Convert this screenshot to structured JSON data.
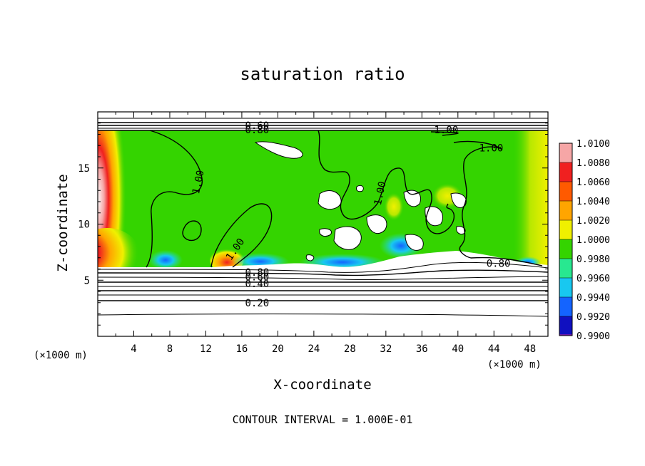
{
  "chart_data": {
    "type": "heatmap",
    "title": "saturation ratio",
    "xlabel": "X-coordinate",
    "ylabel": "Z-coordinate",
    "x_unit": "(×1000 m)",
    "z_unit": "(×1000 m)",
    "xlim": [
      0,
      50
    ],
    "ylim": [
      0,
      20
    ],
    "xticks": [
      4,
      8,
      12,
      16,
      20,
      24,
      28,
      32,
      36,
      40,
      44,
      48
    ],
    "yticks": [
      5,
      10,
      15
    ],
    "colorbar": {
      "levels": [
        "1.0100",
        "1.0080",
        "1.0060",
        "1.0040",
        "1.0020",
        "1.0000",
        "0.9980",
        "0.9960",
        "0.9940",
        "0.9920",
        "0.9900"
      ],
      "colors": [
        "#f6a6a6",
        "#f02020",
        "#ff5a00",
        "#ffa500",
        "#f0f000",
        "#34d400",
        "#28e890",
        "#18c8f0",
        "#1464ff",
        "#1010c0",
        "#6a18a8"
      ]
    },
    "contour_labels": [
      {
        "text": "0.60",
        "x": 17.7,
        "z": 18.8
      },
      {
        "text": "0.80",
        "x": 17.7,
        "z": 18.4
      },
      {
        "text": "1.00",
        "x": 38.7,
        "z": 18.4
      },
      {
        "text": "1.00",
        "x": 43.7,
        "z": 16.8
      },
      {
        "text": "1.00",
        "x": 11.2,
        "z": 13.8
      },
      {
        "text": "1.00",
        "x": 31.4,
        "z": 12.8
      },
      {
        "text": "1.00",
        "x": 15.3,
        "z": 7.8
      },
      {
        "text": "0.80",
        "x": 17.7,
        "z": 5.7
      },
      {
        "text": "0.60",
        "x": 17.7,
        "z": 5.3
      },
      {
        "text": "0.40",
        "x": 17.7,
        "z": 4.7
      },
      {
        "text": "0.20",
        "x": 17.7,
        "z": 3.0
      },
      {
        "text": "0.80",
        "x": 44.5,
        "z": 6.5
      }
    ],
    "footer": "CONTOUR INTERVAL = 1.000E-01"
  }
}
